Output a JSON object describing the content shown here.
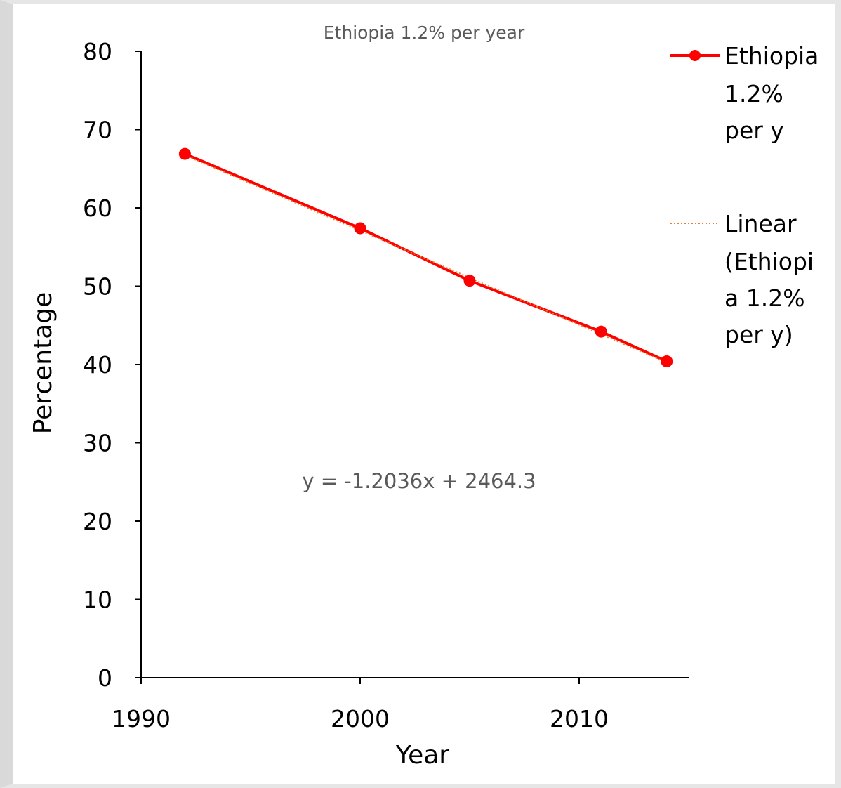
{
  "chart_data": {
    "type": "line",
    "title": "Ethiopia 1.2% per year",
    "xlabel": "Year",
    "ylabel": "Percentage",
    "xlim": [
      1990,
      2015
    ],
    "ylim": [
      0,
      80
    ],
    "x_ticks": [
      "1990",
      "2000",
      "2010"
    ],
    "y_ticks": [
      "0",
      "10",
      "20",
      "30",
      "40",
      "50",
      "60",
      "70",
      "80"
    ],
    "series": [
      {
        "name": "Ethiopia 1.2% per y",
        "color": "#ff0000",
        "marker": "circle",
        "x": [
          1992,
          2000,
          2005,
          2011,
          2014
        ],
        "values": [
          66.9,
          57.4,
          50.7,
          44.2,
          40.4
        ]
      }
    ],
    "trendline": {
      "name": "Linear (Ethiopia 1.2% per y)",
      "type": "linear",
      "color": "#ed7d31",
      "style": "dotted",
      "slope": -1.2036,
      "intercept": 2464.3,
      "equation": "y = -1.2036x + 2464.3"
    },
    "legend": {
      "position": "right",
      "entries": [
        {
          "lines": [
            "Ethiopia",
            "1.2%",
            "per y"
          ]
        },
        {
          "lines": [
            "Linear",
            "(Ethiopi",
            "a 1.2%",
            "per y)"
          ]
        }
      ]
    },
    "grid": false
  }
}
